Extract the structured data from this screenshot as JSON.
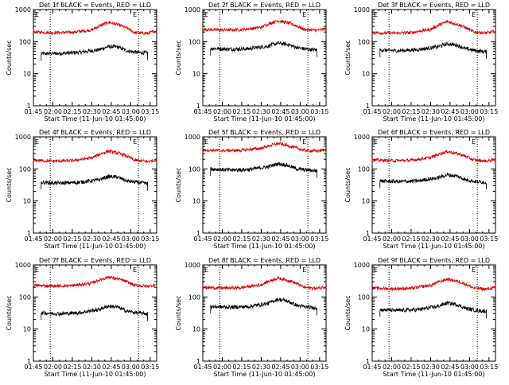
{
  "figure": {
    "xlabel": "Start Time (11-Jun-10 01:45:00)",
    "ylabel": "Counts/sec",
    "x_ticks": [
      "01:45",
      "02:00",
      "02:15",
      "02:30",
      "02:45",
      "03:00",
      "03:15"
    ],
    "y_ticks": [
      "1",
      "10",
      "100",
      "1000"
    ],
    "marker_letters": [
      "E",
      "E"
    ],
    "colors": {
      "events": "#000000",
      "lld": "#dd0000",
      "axes": "#000000"
    }
  },
  "chart_data": [
    {
      "type": "line",
      "title": "Det 1f BLACK = Events, RED = LLD",
      "xlim_minutes": [
        0,
        95
      ],
      "ylim": [
        1,
        1000
      ],
      "y_scale": "log",
      "x_start_min": 6,
      "x_end_min": 88,
      "vlines_min": [
        13,
        81
      ],
      "series": [
        {
          "name": "Events",
          "color": "#000000",
          "x_min": [
            6,
            20,
            35,
            50,
            58,
            65,
            72,
            80,
            88
          ],
          "values": [
            42,
            43,
            46,
            55,
            70,
            68,
            52,
            46,
            44
          ]
        },
        {
          "name": "LLD",
          "color": "#dd0000",
          "x_min": [
            0,
            15,
            30,
            45,
            58,
            68,
            78,
            88,
            95
          ],
          "values": [
            200,
            190,
            195,
            230,
            400,
            310,
            190,
            180,
            220
          ]
        }
      ]
    },
    {
      "type": "line",
      "title": "Det 2f BLACK = Events, RED = LLD",
      "xlim_minutes": [
        0,
        95
      ],
      "ylim": [
        1,
        1000
      ],
      "y_scale": "log",
      "x_start_min": 6,
      "x_end_min": 88,
      "vlines_min": [
        13,
        81
      ],
      "series": [
        {
          "name": "Events",
          "color": "#000000",
          "x_min": [
            6,
            20,
            35,
            50,
            58,
            65,
            72,
            80,
            88
          ],
          "values": [
            62,
            58,
            60,
            72,
            90,
            82,
            66,
            58,
            55
          ]
        },
        {
          "name": "LLD",
          "color": "#dd0000",
          "x_min": [
            0,
            15,
            30,
            45,
            58,
            68,
            78,
            88,
            95
          ],
          "values": [
            240,
            230,
            235,
            280,
            450,
            360,
            240,
            225,
            250
          ]
        }
      ]
    },
    {
      "type": "line",
      "title": "Det 3f BLACK = Events, RED = LLD",
      "xlim_minutes": [
        0,
        95
      ],
      "ylim": [
        1,
        1000
      ],
      "y_scale": "log",
      "x_start_min": 6,
      "x_end_min": 88,
      "vlines_min": [
        13,
        81
      ],
      "series": [
        {
          "name": "Events",
          "color": "#000000",
          "x_min": [
            6,
            20,
            35,
            50,
            58,
            65,
            72,
            80,
            88
          ],
          "values": [
            55,
            52,
            56,
            68,
            85,
            78,
            60,
            52,
            48
          ]
        },
        {
          "name": "LLD",
          "color": "#dd0000",
          "x_min": [
            0,
            15,
            30,
            45,
            58,
            68,
            78,
            88,
            95
          ],
          "values": [
            190,
            185,
            190,
            240,
            420,
            320,
            200,
            185,
            210
          ]
        }
      ]
    },
    {
      "type": "line",
      "title": "Det 4f BLACK = Events, RED = LLD",
      "xlim_minutes": [
        0,
        95
      ],
      "ylim": [
        1,
        1000
      ],
      "y_scale": "log",
      "x_start_min": 6,
      "x_end_min": 88,
      "vlines_min": [
        13,
        81
      ],
      "series": [
        {
          "name": "Events",
          "color": "#000000",
          "x_min": [
            6,
            20,
            35,
            50,
            58,
            65,
            72,
            80,
            88
          ],
          "values": [
            38,
            36,
            38,
            45,
            58,
            55,
            42,
            38,
            35
          ]
        },
        {
          "name": "LLD",
          "color": "#dd0000",
          "x_min": [
            0,
            15,
            30,
            45,
            58,
            68,
            78,
            88,
            95
          ],
          "values": [
            185,
            175,
            180,
            220,
            360,
            290,
            185,
            170,
            190
          ]
        }
      ]
    },
    {
      "type": "line",
      "title": "Det 5f BLACK = Events, RED = LLD",
      "xlim_minutes": [
        0,
        95
      ],
      "ylim": [
        1,
        1000
      ],
      "y_scale": "log",
      "x_start_min": 6,
      "x_end_min": 88,
      "vlines_min": [
        13,
        81
      ],
      "series": [
        {
          "name": "Events",
          "color": "#000000",
          "x_min": [
            6,
            20,
            35,
            50,
            58,
            65,
            72,
            80,
            88
          ],
          "values": [
            100,
            92,
            95,
            115,
            145,
            130,
            100,
            92,
            88
          ]
        },
        {
          "name": "LLD",
          "color": "#dd0000",
          "x_min": [
            0,
            15,
            30,
            45,
            58,
            68,
            78,
            88,
            95
          ],
          "values": [
            390,
            375,
            380,
            440,
            620,
            500,
            380,
            360,
            400
          ]
        }
      ]
    },
    {
      "type": "line",
      "title": "Det 6f BLACK = Events, RED = LLD",
      "xlim_minutes": [
        0,
        95
      ],
      "ylim": [
        1,
        1000
      ],
      "y_scale": "log",
      "x_start_min": 6,
      "x_end_min": 88,
      "vlines_min": [
        13,
        81
      ],
      "series": [
        {
          "name": "Events",
          "color": "#000000",
          "x_min": [
            6,
            20,
            35,
            50,
            58,
            65,
            72,
            80,
            88
          ],
          "values": [
            42,
            40,
            42,
            52,
            65,
            60,
            46,
            40,
            38
          ]
        },
        {
          "name": "LLD",
          "color": "#dd0000",
          "x_min": [
            0,
            15,
            30,
            45,
            58,
            68,
            78,
            88,
            95
          ],
          "values": [
            190,
            180,
            185,
            225,
            350,
            280,
            190,
            175,
            195
          ]
        }
      ]
    },
    {
      "type": "line",
      "title": "Det 7f BLACK = Events, RED = LLD",
      "xlim_minutes": [
        0,
        95
      ],
      "ylim": [
        1,
        1000
      ],
      "y_scale": "log",
      "x_start_min": 6,
      "x_end_min": 88,
      "vlines_min": [
        13,
        81
      ],
      "series": [
        {
          "name": "Events",
          "color": "#000000",
          "x_min": [
            6,
            20,
            35,
            50,
            58,
            65,
            72,
            80,
            88
          ],
          "values": [
            32,
            30,
            32,
            40,
            52,
            48,
            36,
            32,
            30
          ]
        },
        {
          "name": "LLD",
          "color": "#dd0000",
          "x_min": [
            0,
            15,
            30,
            45,
            58,
            68,
            78,
            88,
            95
          ],
          "values": [
            230,
            220,
            225,
            270,
            420,
            340,
            230,
            215,
            240
          ]
        }
      ]
    },
    {
      "type": "line",
      "title": "Det 8f BLACK = Events, RED = LLD",
      "xlim_minutes": [
        0,
        95
      ],
      "ylim": [
        1,
        1000
      ],
      "y_scale": "log",
      "x_start_min": 6,
      "x_end_min": 88,
      "vlines_min": [
        13,
        81
      ],
      "series": [
        {
          "name": "Events",
          "color": "#000000",
          "x_min": [
            6,
            20,
            35,
            50,
            58,
            65,
            72,
            80,
            88
          ],
          "values": [
            50,
            48,
            50,
            62,
            85,
            75,
            55,
            48,
            45
          ]
        },
        {
          "name": "LLD",
          "color": "#dd0000",
          "x_min": [
            0,
            15,
            30,
            45,
            58,
            68,
            78,
            88,
            95
          ],
          "values": [
            200,
            190,
            195,
            240,
            390,
            310,
            200,
            185,
            210
          ]
        }
      ]
    },
    {
      "type": "line",
      "title": "Det 9f BLACK = Events, RED = LLD",
      "xlim_minutes": [
        0,
        95
      ],
      "ylim": [
        1,
        1000
      ],
      "y_scale": "log",
      "x_start_min": 6,
      "x_end_min": 88,
      "vlines_min": [
        13,
        81
      ],
      "series": [
        {
          "name": "Events",
          "color": "#000000",
          "x_min": [
            6,
            20,
            35,
            50,
            58,
            65,
            72,
            80,
            88
          ],
          "values": [
            40,
            38,
            40,
            50,
            65,
            58,
            44,
            38,
            36
          ]
        },
        {
          "name": "LLD",
          "color": "#dd0000",
          "x_min": [
            0,
            15,
            30,
            45,
            58,
            68,
            78,
            88,
            95
          ],
          "values": [
            190,
            180,
            185,
            230,
            360,
            290,
            190,
            175,
            195
          ]
        }
      ]
    }
  ]
}
